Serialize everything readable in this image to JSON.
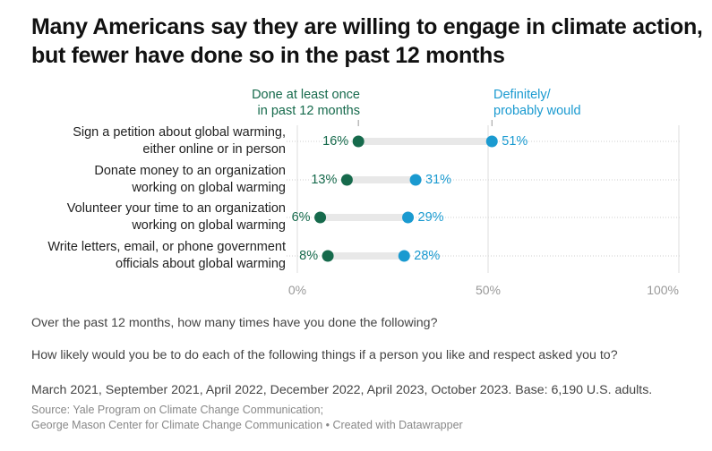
{
  "title": "Many Americans say they are willing to engage in climate action, but fewer have done so in the past 12 months",
  "colors": {
    "done": "#166a4c",
    "would": "#1a9ad0",
    "connector": "#e8e8e8",
    "grid": "#dcdcdc",
    "axis_text": "#999999"
  },
  "legend": {
    "done_label_line1": "Done at least once",
    "done_label_line2": "in past 12 months",
    "would_label_line1": "Definitely/",
    "would_label_line2": "probably would"
  },
  "chart_data": {
    "type": "dot-range",
    "title": "Many Americans say they are willing to engage in climate action, but fewer have done so in the past 12 months",
    "categories": [
      "Sign a petition about global warming, either online or in person",
      "Donate money to an organization working on global warming",
      "Volunteer your time to an organization working on global warming",
      "Write letters, email, or phone government officials about global warming"
    ],
    "category_lines": [
      [
        "Sign a petition about global warming,",
        "either online or in person"
      ],
      [
        "Donate money to an organization",
        "working on global warming"
      ],
      [
        "Volunteer your time to an organization",
        "working on global warming"
      ],
      [
        "Write letters, email, or phone government",
        "officials about global warming"
      ]
    ],
    "series": [
      {
        "name": "Done at least once in past 12 months",
        "values": [
          16,
          13,
          6,
          8
        ],
        "labels": [
          "16%",
          "13%",
          "6%",
          "8%"
        ]
      },
      {
        "name": "Definitely/probably would",
        "values": [
          51,
          31,
          29,
          28
        ],
        "labels": [
          "51%",
          "31%",
          "29%",
          "28%"
        ]
      }
    ],
    "xlim": [
      0,
      100
    ],
    "xticks": [
      0,
      50,
      100
    ],
    "xtick_labels": [
      "0%",
      "50%",
      "100%"
    ],
    "grid": true,
    "legend": "top (direct labels)"
  },
  "notes": {
    "q1": "Over the past 12 months, how many times have you done the following?",
    "q2": "How likely would you be to do each of the following things if a person you like and respect asked you to?",
    "dates": "March 2021, September 2021, April 2022, December 2022, April 2023, October 2023. Base: 6,190 U.S. adults."
  },
  "source": {
    "line1": "Source: Yale Program on Climate Change Communication;",
    "line2": "George Mason Center for Climate Change Communication • Created with Datawrapper"
  }
}
